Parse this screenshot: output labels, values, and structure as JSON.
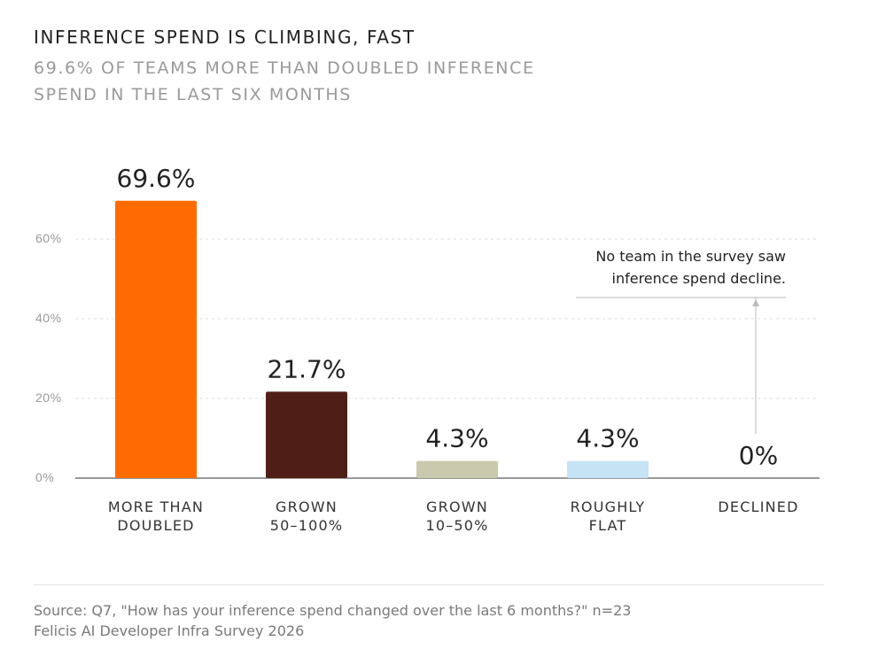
{
  "header": {
    "title": "INFERENCE SPEND IS CLIMBING, FAST",
    "subtitle": "69.6% OF TEAMS MORE THAN DOUBLED INFERENCE SPEND IN THE LAST SIX MONTHS"
  },
  "chart_data": {
    "type": "bar",
    "title": "INFERENCE SPEND IS CLIMBING, FAST",
    "subtitle": "69.6% OF TEAMS MORE THAN DOUBLED INFERENCE SPEND IN THE LAST SIX MONTHS",
    "categories": [
      [
        "MORE THAN",
        "DOUBLED"
      ],
      [
        "GROWN",
        "50–100%"
      ],
      [
        "GROWN",
        "10–50%"
      ],
      [
        "ROUGHLY",
        "FLAT"
      ],
      [
        "DECLINED"
      ]
    ],
    "values": [
      69.6,
      21.7,
      4.3,
      4.3,
      0
    ],
    "value_labels": [
      "69.6%",
      "21.7%",
      "4.3%",
      "4.3%",
      "0%"
    ],
    "colors": [
      "#ff6b00",
      "#4f1f17",
      "#c9c9ad",
      "#c6e3f5",
      "#ffffff"
    ],
    "yticks": [
      0,
      20,
      40,
      60
    ],
    "ytick_labels": [
      "0%",
      "20%",
      "40%",
      "60%"
    ],
    "ylim": [
      0,
      70
    ],
    "grid": true,
    "annotation": {
      "lines": [
        "No team in the survey saw",
        "inference spend decline."
      ],
      "target_index": 4
    }
  },
  "footer": {
    "source_line1": "Source: Q7, \"How has your inference spend changed over the last 6 months?\" n=23",
    "source_line2": "Felicis AI Developer Infra Survey 2026"
  }
}
